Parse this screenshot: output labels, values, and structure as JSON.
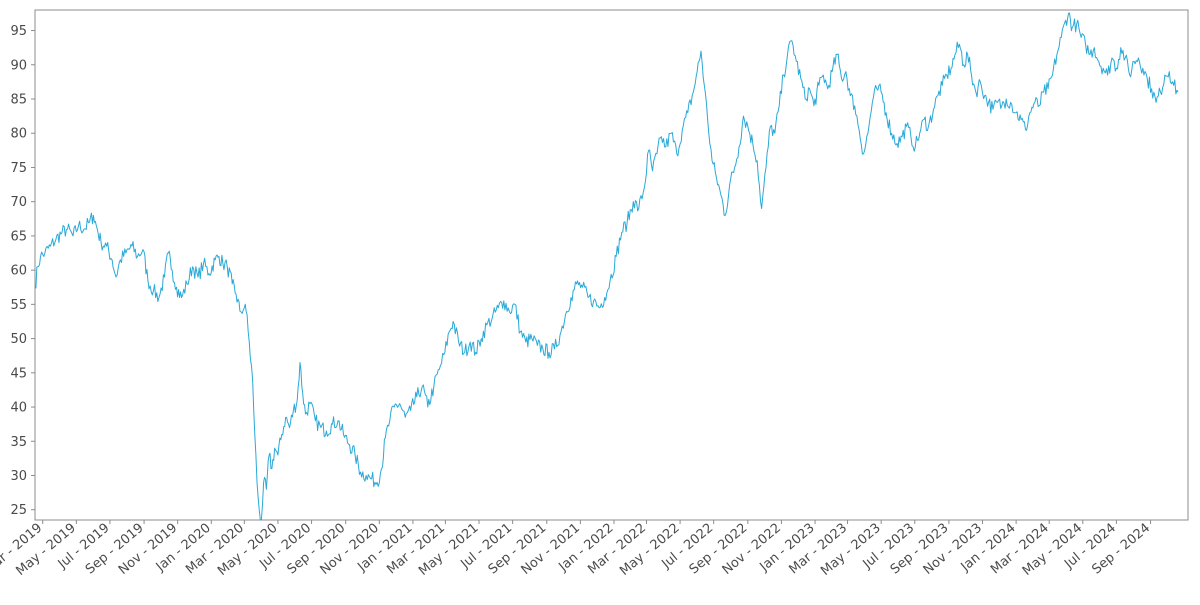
{
  "chart_data": {
    "type": "line",
    "title": "",
    "xlabel": "",
    "ylabel": "",
    "grid": false,
    "legend": "none",
    "line_color": "#29a9d8",
    "x_range": [
      "2019-02-15",
      "2024-11-08"
    ],
    "ylim": [
      23.5,
      98
    ],
    "yticks": [
      25,
      30,
      35,
      40,
      45,
      50,
      55,
      60,
      65,
      70,
      75,
      80,
      85,
      90,
      95
    ],
    "xticks": [
      {
        "date": "2019-03-01",
        "label": "Mar - 2019"
      },
      {
        "date": "2019-05-01",
        "label": "May - 2019"
      },
      {
        "date": "2019-07-01",
        "label": "Jul - 2019"
      },
      {
        "date": "2019-09-01",
        "label": "Sep - 2019"
      },
      {
        "date": "2019-11-01",
        "label": "Nov - 2019"
      },
      {
        "date": "2020-01-01",
        "label": "Jan - 2020"
      },
      {
        "date": "2020-03-01",
        "label": "Mar - 2020"
      },
      {
        "date": "2020-05-01",
        "label": "May - 2020"
      },
      {
        "date": "2020-07-01",
        "label": "Jul - 2020"
      },
      {
        "date": "2020-09-01",
        "label": "Sep - 2020"
      },
      {
        "date": "2020-11-01",
        "label": "Nov - 2020"
      },
      {
        "date": "2021-01-01",
        "label": "Jan - 2021"
      },
      {
        "date": "2021-03-01",
        "label": "Mar - 2021"
      },
      {
        "date": "2021-05-01",
        "label": "May - 2021"
      },
      {
        "date": "2021-07-01",
        "label": "Jul - 2021"
      },
      {
        "date": "2021-09-01",
        "label": "Sep - 2021"
      },
      {
        "date": "2021-11-01",
        "label": "Nov - 2021"
      },
      {
        "date": "2022-01-01",
        "label": "Jan - 2022"
      },
      {
        "date": "2022-03-01",
        "label": "Mar - 2022"
      },
      {
        "date": "2022-05-01",
        "label": "May - 2022"
      },
      {
        "date": "2022-07-01",
        "label": "Jul - 2022"
      },
      {
        "date": "2022-09-01",
        "label": "Sep - 2022"
      },
      {
        "date": "2022-11-01",
        "label": "Nov - 2022"
      },
      {
        "date": "2023-01-01",
        "label": "Jan - 2023"
      },
      {
        "date": "2023-03-01",
        "label": "Mar - 2023"
      },
      {
        "date": "2023-05-01",
        "label": "May - 2023"
      },
      {
        "date": "2023-07-01",
        "label": "Jul - 2023"
      },
      {
        "date": "2023-09-01",
        "label": "Sep - 2023"
      },
      {
        "date": "2023-11-01",
        "label": "Nov - 2023"
      },
      {
        "date": "2024-01-01",
        "label": "Jan - 2024"
      },
      {
        "date": "2024-03-01",
        "label": "Mar - 2024"
      },
      {
        "date": "2024-05-01",
        "label": "May - 2024"
      },
      {
        "date": "2024-07-01",
        "label": "Jul - 2024"
      },
      {
        "date": "2024-09-01",
        "label": "Sep - 2024"
      }
    ],
    "series": [
      {
        "points": [
          [
            "2019-02-15",
            57.5
          ],
          [
            "2019-02-20",
            60.5
          ],
          [
            "2019-02-25",
            62.0
          ],
          [
            "2019-03-05",
            62.5
          ],
          [
            "2019-03-15",
            63.5
          ],
          [
            "2019-03-25",
            64.5
          ],
          [
            "2019-04-05",
            65.5
          ],
          [
            "2019-04-15",
            66.0
          ],
          [
            "2019-04-25",
            65.0
          ],
          [
            "2019-05-05",
            66.5
          ],
          [
            "2019-05-15",
            66.0
          ],
          [
            "2019-05-25",
            67.0
          ],
          [
            "2019-06-01",
            68.0
          ],
          [
            "2019-06-08",
            66.0
          ],
          [
            "2019-06-15",
            64.0
          ],
          [
            "2019-06-25",
            63.5
          ],
          [
            "2019-07-05",
            61.5
          ],
          [
            "2019-07-12",
            59.0
          ],
          [
            "2019-07-20",
            61.5
          ],
          [
            "2019-07-30",
            62.5
          ],
          [
            "2019-08-10",
            63.5
          ],
          [
            "2019-08-20",
            62.0
          ],
          [
            "2019-08-30",
            63.0
          ],
          [
            "2019-09-08",
            58.5
          ],
          [
            "2019-09-18",
            57.0
          ],
          [
            "2019-09-28",
            56.0
          ],
          [
            "2019-10-08",
            59.0
          ],
          [
            "2019-10-15",
            62.5
          ],
          [
            "2019-10-22",
            60.0
          ],
          [
            "2019-10-30",
            57.5
          ],
          [
            "2019-11-08",
            56.0
          ],
          [
            "2019-11-18",
            58.0
          ],
          [
            "2019-11-28",
            60.5
          ],
          [
            "2019-12-08",
            59.0
          ],
          [
            "2019-12-18",
            61.0
          ],
          [
            "2019-12-28",
            59.5
          ],
          [
            "2020-01-08",
            61.5
          ],
          [
            "2020-01-15",
            62.0
          ],
          [
            "2020-01-22",
            61.0
          ],
          [
            "2020-01-30",
            60.5
          ],
          [
            "2020-02-08",
            58.0
          ],
          [
            "2020-02-15",
            56.5
          ],
          [
            "2020-02-22",
            54.0
          ],
          [
            "2020-03-01",
            54.5
          ],
          [
            "2020-03-06",
            53.5
          ],
          [
            "2020-03-12",
            47.0
          ],
          [
            "2020-03-16",
            44.0
          ],
          [
            "2020-03-20",
            36.0
          ],
          [
            "2020-03-24",
            29.0
          ],
          [
            "2020-03-28",
            25.0
          ],
          [
            "2020-04-01",
            23.5
          ],
          [
            "2020-04-05",
            29.0
          ],
          [
            "2020-04-10",
            28.0
          ],
          [
            "2020-04-15",
            33.0
          ],
          [
            "2020-04-20",
            31.0
          ],
          [
            "2020-04-25",
            34.0
          ],
          [
            "2020-05-01",
            33.0
          ],
          [
            "2020-05-08",
            36.0
          ],
          [
            "2020-05-15",
            38.5
          ],
          [
            "2020-05-22",
            37.0
          ],
          [
            "2020-05-29",
            39.5
          ],
          [
            "2020-06-05",
            41.0
          ],
          [
            "2020-06-10",
            46.5
          ],
          [
            "2020-06-15",
            42.0
          ],
          [
            "2020-06-20",
            39.0
          ],
          [
            "2020-06-28",
            40.5
          ],
          [
            "2020-07-08",
            38.0
          ],
          [
            "2020-07-18",
            37.0
          ],
          [
            "2020-07-28",
            36.5
          ],
          [
            "2020-08-08",
            37.5
          ],
          [
            "2020-08-18",
            38.0
          ],
          [
            "2020-08-28",
            36.0
          ],
          [
            "2020-09-08",
            34.5
          ],
          [
            "2020-09-18",
            33.0
          ],
          [
            "2020-09-28",
            30.5
          ],
          [
            "2020-10-08",
            30.0
          ],
          [
            "2020-10-18",
            29.5
          ],
          [
            "2020-10-28",
            29.0
          ],
          [
            "2020-11-05",
            31.0
          ],
          [
            "2020-11-12",
            35.5
          ],
          [
            "2020-11-20",
            38.0
          ],
          [
            "2020-11-28",
            40.0
          ],
          [
            "2020-12-08",
            40.5
          ],
          [
            "2020-12-18",
            38.5
          ],
          [
            "2020-12-28",
            39.5
          ],
          [
            "2021-01-08",
            41.5
          ],
          [
            "2021-01-18",
            43.0
          ],
          [
            "2021-01-28",
            40.0
          ],
          [
            "2021-02-08",
            43.0
          ],
          [
            "2021-02-18",
            45.5
          ],
          [
            "2021-02-28",
            48.0
          ],
          [
            "2021-03-08",
            51.0
          ],
          [
            "2021-03-15",
            52.5
          ],
          [
            "2021-03-25",
            49.5
          ],
          [
            "2021-04-05",
            48.0
          ],
          [
            "2021-04-15",
            49.5
          ],
          [
            "2021-04-25",
            48.0
          ],
          [
            "2021-05-05",
            50.0
          ],
          [
            "2021-05-15",
            52.0
          ],
          [
            "2021-05-25",
            53.0
          ],
          [
            "2021-06-05",
            54.5
          ],
          [
            "2021-06-15",
            55.5
          ],
          [
            "2021-06-25",
            54.0
          ],
          [
            "2021-07-05",
            55.0
          ],
          [
            "2021-07-15",
            51.0
          ],
          [
            "2021-07-25",
            49.5
          ],
          [
            "2021-08-05",
            50.0
          ],
          [
            "2021-08-15",
            49.0
          ],
          [
            "2021-08-25",
            48.5
          ],
          [
            "2021-09-05",
            48.0
          ],
          [
            "2021-09-15",
            48.5
          ],
          [
            "2021-09-25",
            50.5
          ],
          [
            "2021-10-05",
            53.5
          ],
          [
            "2021-10-15",
            56.0
          ],
          [
            "2021-10-25",
            58.0
          ],
          [
            "2021-11-05",
            57.5
          ],
          [
            "2021-11-15",
            56.0
          ],
          [
            "2021-11-25",
            55.5
          ],
          [
            "2021-12-05",
            54.5
          ],
          [
            "2021-12-15",
            56.0
          ],
          [
            "2021-12-25",
            58.5
          ],
          [
            "2022-01-05",
            62.0
          ],
          [
            "2022-01-15",
            65.5
          ],
          [
            "2022-01-25",
            67.0
          ],
          [
            "2022-02-05",
            70.0
          ],
          [
            "2022-02-15",
            69.0
          ],
          [
            "2022-02-25",
            72.0
          ],
          [
            "2022-03-05",
            77.5
          ],
          [
            "2022-03-12",
            74.5
          ],
          [
            "2022-03-20",
            77.0
          ],
          [
            "2022-03-28",
            79.5
          ],
          [
            "2022-04-05",
            78.0
          ],
          [
            "2022-04-15",
            80.0
          ],
          [
            "2022-04-25",
            77.0
          ],
          [
            "2022-05-05",
            80.5
          ],
          [
            "2022-05-15",
            83.0
          ],
          [
            "2022-05-25",
            86.0
          ],
          [
            "2022-06-01",
            89.0
          ],
          [
            "2022-06-08",
            92.0
          ],
          [
            "2022-06-14",
            87.0
          ],
          [
            "2022-06-20",
            82.0
          ],
          [
            "2022-06-28",
            76.0
          ],
          [
            "2022-07-06",
            73.5
          ],
          [
            "2022-07-14",
            71.0
          ],
          [
            "2022-07-22",
            68.0
          ],
          [
            "2022-07-30",
            72.5
          ],
          [
            "2022-08-08",
            75.0
          ],
          [
            "2022-08-16",
            78.0
          ],
          [
            "2022-08-24",
            82.5
          ],
          [
            "2022-09-01",
            81.0
          ],
          [
            "2022-09-10",
            78.5
          ],
          [
            "2022-09-18",
            76.0
          ],
          [
            "2022-09-26",
            69.0
          ],
          [
            "2022-10-04",
            75.0
          ],
          [
            "2022-10-12",
            81.0
          ],
          [
            "2022-10-20",
            80.0
          ],
          [
            "2022-10-28",
            84.0
          ],
          [
            "2022-11-05",
            88.5
          ],
          [
            "2022-11-12",
            91.5
          ],
          [
            "2022-11-20",
            93.5
          ],
          [
            "2022-11-28",
            90.5
          ],
          [
            "2022-12-06",
            88.0
          ],
          [
            "2022-12-14",
            85.0
          ],
          [
            "2022-12-22",
            86.5
          ],
          [
            "2022-12-30",
            84.0
          ],
          [
            "2023-01-08",
            87.0
          ],
          [
            "2023-01-16",
            88.5
          ],
          [
            "2023-01-24",
            86.5
          ],
          [
            "2023-02-01",
            89.0
          ],
          [
            "2023-02-10",
            91.5
          ],
          [
            "2023-02-18",
            88.0
          ],
          [
            "2023-02-26",
            89.0
          ],
          [
            "2023-03-06",
            85.5
          ],
          [
            "2023-03-14",
            84.0
          ],
          [
            "2023-03-22",
            80.5
          ],
          [
            "2023-03-30",
            77.0
          ],
          [
            "2023-04-07",
            80.0
          ],
          [
            "2023-04-15",
            84.5
          ],
          [
            "2023-04-23",
            86.5
          ],
          [
            "2023-05-01",
            86.0
          ],
          [
            "2023-05-10",
            83.0
          ],
          [
            "2023-05-20",
            80.0
          ],
          [
            "2023-05-30",
            78.5
          ],
          [
            "2023-06-08",
            79.5
          ],
          [
            "2023-06-16",
            81.0
          ],
          [
            "2023-06-24",
            79.5
          ],
          [
            "2023-07-02",
            78.0
          ],
          [
            "2023-07-10",
            80.0
          ],
          [
            "2023-07-18",
            82.0
          ],
          [
            "2023-07-26",
            81.0
          ],
          [
            "2023-08-04",
            83.5
          ],
          [
            "2023-08-12",
            85.5
          ],
          [
            "2023-08-20",
            87.0
          ],
          [
            "2023-08-28",
            88.5
          ],
          [
            "2023-09-05",
            89.5
          ],
          [
            "2023-09-12",
            91.5
          ],
          [
            "2023-09-20",
            93.0
          ],
          [
            "2023-09-28",
            90.0
          ],
          [
            "2023-10-05",
            91.5
          ],
          [
            "2023-10-12",
            88.5
          ],
          [
            "2023-10-20",
            86.0
          ],
          [
            "2023-10-28",
            87.5
          ],
          [
            "2023-11-05",
            85.5
          ],
          [
            "2023-11-12",
            84.5
          ],
          [
            "2023-11-20",
            83.5
          ],
          [
            "2023-11-28",
            84.5
          ],
          [
            "2023-12-06",
            84.0
          ],
          [
            "2023-12-14",
            85.0
          ],
          [
            "2023-12-22",
            84.5
          ],
          [
            "2024-01-01",
            83.0
          ],
          [
            "2024-01-10",
            82.0
          ],
          [
            "2024-01-18",
            80.5
          ],
          [
            "2024-01-26",
            83.0
          ],
          [
            "2024-02-04",
            84.5
          ],
          [
            "2024-02-12",
            84.0
          ],
          [
            "2024-02-20",
            86.0
          ],
          [
            "2024-02-28",
            86.5
          ],
          [
            "2024-03-07",
            88.5
          ],
          [
            "2024-03-15",
            91.5
          ],
          [
            "2024-03-23",
            94.0
          ],
          [
            "2024-03-31",
            96.5
          ],
          [
            "2024-04-05",
            97.5
          ],
          [
            "2024-04-12",
            95.5
          ],
          [
            "2024-04-20",
            96.0
          ],
          [
            "2024-04-28",
            94.0
          ],
          [
            "2024-05-06",
            93.0
          ],
          [
            "2024-05-14",
            91.5
          ],
          [
            "2024-05-22",
            92.5
          ],
          [
            "2024-05-30",
            90.5
          ],
          [
            "2024-06-07",
            89.5
          ],
          [
            "2024-06-15",
            88.5
          ],
          [
            "2024-06-23",
            91.0
          ],
          [
            "2024-07-01",
            89.5
          ],
          [
            "2024-07-09",
            92.5
          ],
          [
            "2024-07-17",
            91.0
          ],
          [
            "2024-07-25",
            88.5
          ],
          [
            "2024-08-02",
            90.5
          ],
          [
            "2024-08-10",
            91.0
          ],
          [
            "2024-08-18",
            89.5
          ],
          [
            "2024-08-26",
            88.0
          ],
          [
            "2024-09-03",
            86.5
          ],
          [
            "2024-09-11",
            84.5
          ],
          [
            "2024-09-19",
            86.0
          ],
          [
            "2024-09-27",
            88.5
          ],
          [
            "2024-10-05",
            89.0
          ],
          [
            "2024-10-13",
            87.0
          ],
          [
            "2024-10-21",
            86.0
          ]
        ]
      }
    ]
  }
}
